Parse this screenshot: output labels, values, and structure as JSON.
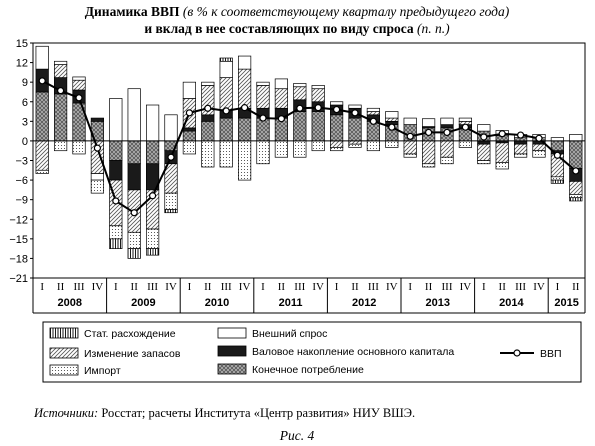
{
  "chart_data": {
    "type": "bar",
    "title_main": "Динамика ВВП",
    "title_italic": "(в % к соответствующему кварталу предыдущего года)",
    "title_line2_main": "и вклад в нее составляющих по виду спроса",
    "title_line2_italic": "(п. п.)",
    "ylim": [
      -21,
      15
    ],
    "yticks": [
      "15",
      "12",
      "9",
      "6",
      "3",
      "0",
      "−3",
      "−6",
      "−9",
      "−12",
      "−15",
      "−18",
      "−21"
    ],
    "ytick_values": [
      15,
      12,
      9,
      6,
      3,
      0,
      -3,
      -6,
      -9,
      -12,
      -15,
      -18,
      -21
    ],
    "quarters": [
      "I",
      "II",
      "III",
      "IV",
      "I",
      "II",
      "III",
      "IV",
      "I",
      "II",
      "III",
      "IV",
      "I",
      "II",
      "III",
      "IV",
      "I",
      "II",
      "III",
      "IV",
      "I",
      "II",
      "III",
      "IV",
      "I",
      "II",
      "III",
      "IV",
      "I",
      "II"
    ],
    "years": [
      "2008",
      "2009",
      "2010",
      "2011",
      "2012",
      "2013",
      "2014",
      "2015"
    ],
    "series": [
      {
        "name": "Конечное потребление",
        "key": "cons",
        "pattern": "cross",
        "values": [
          7.5,
          7.2,
          5.8,
          3.0,
          -3.0,
          -3.5,
          -3.5,
          -1.5,
          1.5,
          3.0,
          3.5,
          3.5,
          3.5,
          3.5,
          4.5,
          4.5,
          4.0,
          3.5,
          3.0,
          2.5,
          2.5,
          2.0,
          2.0,
          2.0,
          1.5,
          0.8,
          0.5,
          0.5,
          -1.5,
          -4.2
        ]
      },
      {
        "name": "Валовое накопление основного капитала",
        "key": "gfcf",
        "pattern": "black",
        "values": [
          3.5,
          2.5,
          2.0,
          0.5,
          -3.0,
          -4.0,
          -4.0,
          -2.0,
          0.5,
          1.0,
          1.2,
          1.5,
          1.5,
          1.5,
          1.8,
          1.5,
          1.5,
          1.5,
          1.0,
          0.5,
          0.0,
          0.2,
          0.5,
          0.5,
          -0.5,
          -0.3,
          -0.5,
          -0.5,
          -0.5,
          -2.0
        ]
      },
      {
        "name": "Изменение запасов",
        "key": "inv",
        "pattern": "hatch",
        "values": [
          -4.5,
          2.0,
          1.5,
          -5.0,
          -7.0,
          -6.5,
          -6.0,
          -4.5,
          4.5,
          4.5,
          5.0,
          6.0,
          3.5,
          3.0,
          2.0,
          2.0,
          -1.0,
          -0.5,
          0.5,
          0.5,
          -2.0,
          -3.5,
          -2.5,
          0.5,
          -2.5,
          -3.0,
          -1.5,
          -1.0,
          -3.5,
          -2.0
        ]
      },
      {
        "name": "Внешний спрос",
        "key": "ext",
        "pattern": "white",
        "values": [
          3.5,
          0.5,
          0.5,
          -1.0,
          6.5,
          8.0,
          5.5,
          4.0,
          2.5,
          0.5,
          2.5,
          2.0,
          0.5,
          1.5,
          0.5,
          0.5,
          0.5,
          0.5,
          0.5,
          1.0,
          1.0,
          1.2,
          1.0,
          0.5,
          1.0,
          0.8,
          0.5,
          0.5,
          0.5,
          1.0
        ]
      },
      {
        "name": "Импорт",
        "key": "imp",
        "pattern": "dots",
        "values": [
          -0.5,
          -1.5,
          -2.0,
          -2.0,
          -2.0,
          -2.5,
          -3.0,
          -2.5,
          -2.0,
          -4.0,
          -4.0,
          -6.0,
          -3.5,
          -2.5,
          -2.5,
          -1.5,
          -0.5,
          -0.5,
          -1.5,
          -1.0,
          -0.5,
          -0.5,
          -1.0,
          -1.0,
          -0.5,
          -1.0,
          -0.5,
          -1.0,
          -0.5,
          -0.5
        ]
      },
      {
        "name": "Стат. расхождение",
        "key": "stat",
        "pattern": "vlines",
        "values": [
          0.0,
          0.0,
          0.0,
          0.0,
          -1.5,
          -1.5,
          -1.0,
          -0.5,
          0.0,
          0.0,
          0.5,
          0.0,
          0.0,
          0.0,
          0.0,
          0.0,
          0.0,
          0.0,
          0.0,
          0.0,
          0.0,
          0.0,
          0.0,
          0.0,
          0.0,
          0.0,
          0.0,
          0.0,
          -0.5,
          -0.5
        ]
      }
    ],
    "line_series": {
      "name": "ВВП",
      "values": [
        9.2,
        7.7,
        6.6,
        -1.1,
        -9.2,
        -11.0,
        -8.4,
        -2.5,
        4.3,
        5.0,
        4.6,
        5.1,
        3.5,
        3.4,
        5.0,
        5.1,
        4.8,
        4.3,
        3.0,
        2.1,
        0.7,
        1.3,
        1.3,
        2.1,
        0.6,
        1.1,
        0.9,
        0.4,
        -2.2,
        -4.6
      ]
    },
    "legend": [
      {
        "key": "stat",
        "label": "Стат. расхождение"
      },
      {
        "key": "ext",
        "label": "Внешний спрос"
      },
      {
        "key": "line",
        "label": "ВВП"
      },
      {
        "key": "inv",
        "label": "Изменение запасов"
      },
      {
        "key": "gfcf",
        "label": "Валовое накопление основного капитала"
      },
      {
        "key": "imp",
        "label": "Импорт"
      },
      {
        "key": "cons",
        "label": "Конечное потребление"
      }
    ]
  },
  "source_label": "Источники:",
  "source_text": " Росстат; расчеты Института «Центр развития» НИУ ВШЭ.",
  "caption": "Рис. 4"
}
